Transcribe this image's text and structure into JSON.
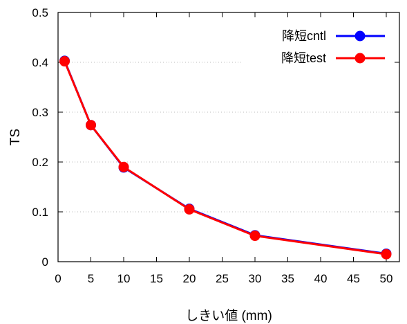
{
  "chart_data": {
    "type": "line",
    "xlabel": "しきい値 (mm)",
    "ylabel": "TS",
    "xlim": [
      0,
      52
    ],
    "ylim": [
      0,
      0.5
    ],
    "xticks": [
      0,
      5,
      10,
      15,
      20,
      25,
      30,
      35,
      40,
      45,
      50
    ],
    "yticks": [
      0,
      0.1,
      0.2,
      0.3,
      0.4,
      0.5
    ],
    "xtick_labels": [
      "0",
      "5",
      "10",
      "15",
      "20",
      "25",
      "30",
      "35",
      "40",
      "45",
      "50"
    ],
    "ytick_labels": [
      "0",
      "0.1",
      "0.2",
      "0.3",
      "0.4",
      "0.5"
    ],
    "grid": "horizontal dotted",
    "legend_position": "top-right",
    "x": [
      1,
      5,
      10,
      20,
      30,
      50
    ],
    "series": [
      {
        "name": "降短cntl",
        "color": "#0000ff",
        "values": [
          0.403,
          0.274,
          0.189,
          0.106,
          0.053,
          0.016
        ]
      },
      {
        "name": "降短test",
        "color": "#ff0000",
        "values": [
          0.402,
          0.274,
          0.19,
          0.105,
          0.052,
          0.015
        ]
      }
    ]
  }
}
